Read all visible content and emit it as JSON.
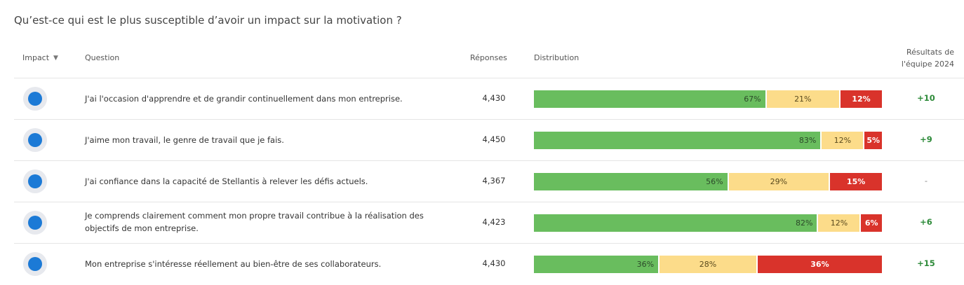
{
  "title": "Qu’est-ce qui est le plus susceptible d’avoir un impact sur la motivation ?",
  "headers": {
    "impact": "Impact",
    "question": "Question",
    "responses": "Réponses",
    "distribution": "Distribution",
    "team_results_line1": "Résultats de",
    "team_results_line2": "l'équipe 2024"
  },
  "rows": [
    {
      "question": "J'ai l'occasion d'apprendre et de grandir continuellement dans mon entreprise.",
      "responses": "4,430",
      "positive": 67,
      "neutral": 21,
      "negative": 12,
      "positive_label": "67%",
      "neutral_label": "21%",
      "negative_label": "12%",
      "team_result": "+10"
    },
    {
      "question": "J'aime mon travail, le genre de travail que je fais.",
      "responses": "4,450",
      "positive": 83,
      "neutral": 12,
      "negative": 5,
      "positive_label": "83%",
      "neutral_label": "12%",
      "negative_label": "5%",
      "team_result": "+9"
    },
    {
      "question": "J'ai confiance dans la capacité de Stellantis à relever les défis actuels.",
      "responses": "4,367",
      "positive": 56,
      "neutral": 29,
      "negative": 15,
      "positive_label": "56%",
      "neutral_label": "29%",
      "negative_label": "15%",
      "team_result": "-"
    },
    {
      "question": "Je comprends clairement comment mon propre travail contribue à la réalisation des objectifs de mon entreprise.",
      "responses": "4,423",
      "positive": 82,
      "neutral": 12,
      "negative": 6,
      "positive_label": "82%",
      "neutral_label": "12%",
      "negative_label": "6%",
      "team_result": "+6"
    },
    {
      "question": "Mon entreprise s'intéresse réellement au bien-être de ses collaborateurs.",
      "responses": "4,430",
      "positive": 36,
      "neutral": 28,
      "negative": 36,
      "positive_label": "36%",
      "neutral_label": "28%",
      "negative_label": "36%",
      "team_result": "+15"
    }
  ],
  "colors": {
    "positive": "#69bd5e",
    "neutral": "#fcdc8a",
    "negative": "#d9332b",
    "impact_dot": "#1c7ad6",
    "score_positive": "#2e8b3a"
  }
}
